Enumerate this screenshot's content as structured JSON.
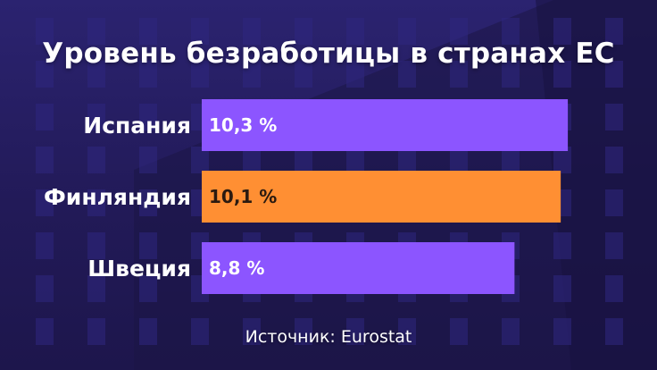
{
  "chart_data": {
    "type": "bar",
    "orientation": "horizontal",
    "title": "Уровень безработицы в странах ЕС",
    "categories": [
      "Испания",
      "Финляндия",
      "Швеция"
    ],
    "values": [
      10.3,
      10.1,
      8.8
    ],
    "value_labels": [
      "10,3 %",
      "10,1 %",
      "8,8 %"
    ],
    "bar_colors": [
      "#8c55ff",
      "#ff8f33",
      "#8c55ff"
    ],
    "value_label_colors": [
      "#ffffff",
      "#2a1a10",
      "#ffffff"
    ],
    "xlim": [
      0,
      10.8
    ],
    "grid": false,
    "legend": false
  },
  "source": "Источник: Eurostat",
  "colors": {
    "background": "#241c5e",
    "highlight": "#ff8f33",
    "default_bar": "#8c55ff",
    "text": "#ffffff"
  }
}
